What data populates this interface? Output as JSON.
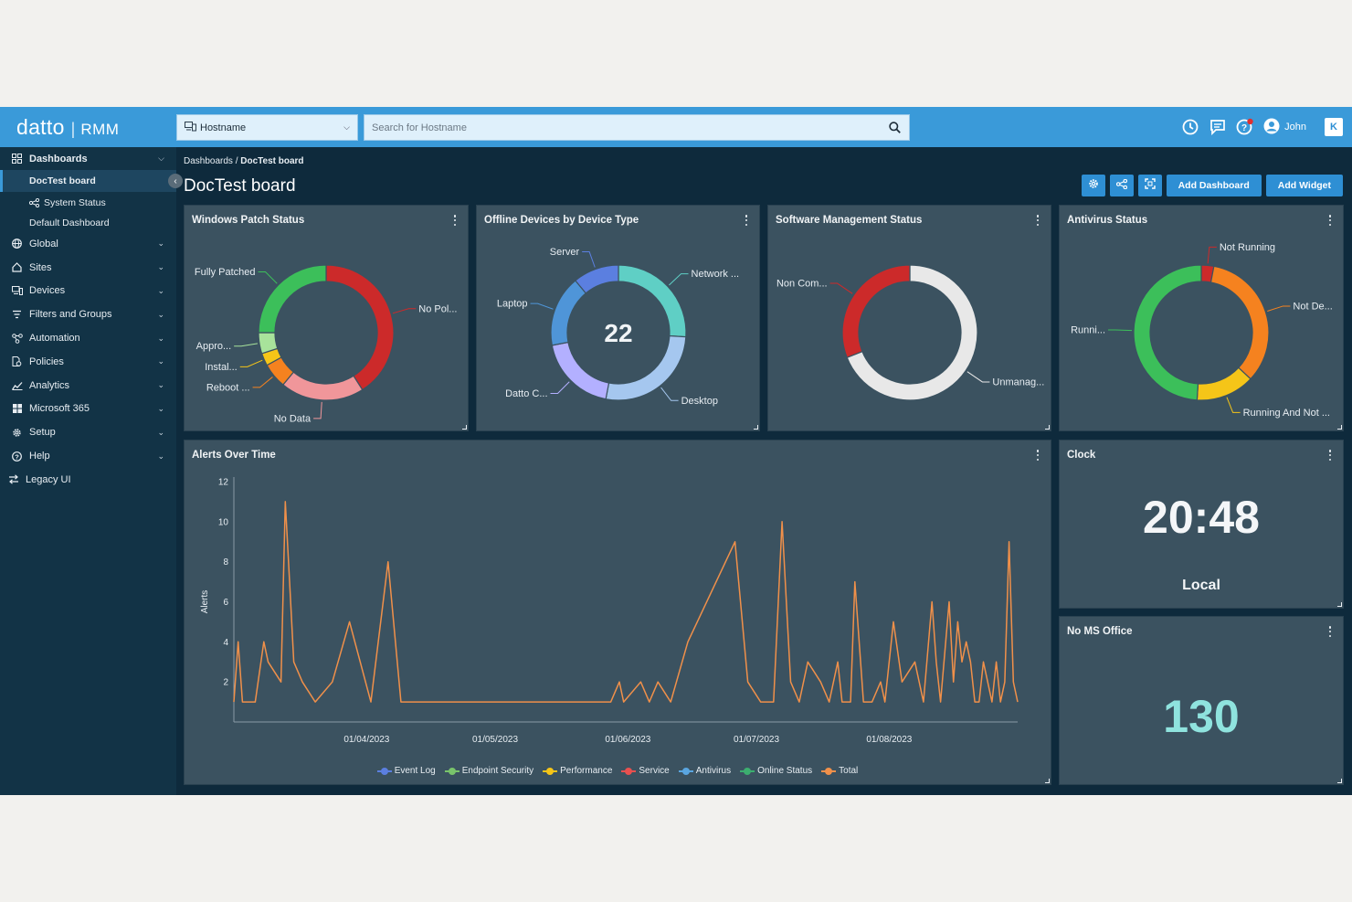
{
  "app": {
    "brand": "datto",
    "separator": "|",
    "product": "RMM"
  },
  "topbar": {
    "host_select": "Hostname",
    "search_placeholder": "Search for Hostname",
    "user_name": "John",
    "kaseya_mark": "K"
  },
  "sidebar": {
    "items": [
      {
        "label": "Dashboards",
        "icon": "grid-icon"
      },
      {
        "label": "Global",
        "icon": "globe-icon"
      },
      {
        "label": "Sites",
        "icon": "home-icon"
      },
      {
        "label": "Devices",
        "icon": "devices-icon"
      },
      {
        "label": "Filters and Groups",
        "icon": "filter-icon"
      },
      {
        "label": "Automation",
        "icon": "automation-icon"
      },
      {
        "label": "Policies",
        "icon": "policies-icon"
      },
      {
        "label": "Analytics",
        "icon": "analytics-icon"
      },
      {
        "label": "Microsoft 365",
        "icon": "windows-icon"
      },
      {
        "label": "Setup",
        "icon": "gear-icon"
      },
      {
        "label": "Help",
        "icon": "help-icon"
      },
      {
        "label": "Legacy UI",
        "icon": "swap-icon"
      }
    ],
    "dashboards": [
      "DocTest board",
      "System Status",
      "Default Dashboard"
    ]
  },
  "main": {
    "breadcrumb_root": "Dashboards",
    "breadcrumb_sep": " / ",
    "breadcrumb_current": "DocTest board",
    "title": "DocTest board",
    "add_dashboard": "Add Dashboard",
    "add_widget": "Add Widget"
  },
  "widgets": {
    "patch": {
      "title": "Windows Patch Status",
      "slices": [
        {
          "label": "No Pol...",
          "value": 41,
          "color": "#cc2a2a"
        },
        {
          "label": "No Data",
          "value": 20,
          "color": "#f0969a"
        },
        {
          "label": "Reboot ...",
          "value": 6,
          "color": "#f5821f"
        },
        {
          "label": "Instal...",
          "value": 3,
          "color": "#f5c518"
        },
        {
          "label": "Appro...",
          "value": 5,
          "color": "#a8e39b"
        },
        {
          "label": "Fully Patched",
          "value": 25,
          "color": "#3cbf5a"
        }
      ]
    },
    "offline": {
      "title": "Offline Devices by Device Type",
      "center": "22",
      "slices": [
        {
          "label": "Network ...",
          "value": 26,
          "color": "#5fcfc5"
        },
        {
          "label": "Desktop",
          "value": 27,
          "color": "#a5c7ef"
        },
        {
          "label": "Datto C...",
          "value": 19,
          "color": "#b3b0ff"
        },
        {
          "label": "Laptop",
          "value": 17,
          "color": "#4f95d8"
        },
        {
          "label": "Server",
          "value": 11,
          "color": "#5b7fe0"
        }
      ]
    },
    "software": {
      "title": "Software Management Status",
      "slices": [
        {
          "label": "Unmanag...",
          "value": 69,
          "color": "#e8e8e8"
        },
        {
          "label": "Non Com...",
          "value": 31,
          "color": "#cc2a2a"
        }
      ]
    },
    "antivirus": {
      "title": "Antivirus Status",
      "slices": [
        {
          "label": "Not Running",
          "value": 3,
          "color": "#cc2a2a"
        },
        {
          "label": "Not De...",
          "value": 34,
          "color": "#f5821f"
        },
        {
          "label": "Running And Not ...",
          "value": 14,
          "color": "#f5c518"
        },
        {
          "label": "Runni...",
          "value": 49,
          "color": "#3cbf5a"
        }
      ]
    },
    "clock": {
      "title": "Clock",
      "time": "20:48",
      "zone": "Local"
    },
    "msoffice": {
      "title": "No MS Office",
      "count": "130"
    }
  },
  "chart_data": {
    "type": "line",
    "title": "Alerts Over Time",
    "ylabel": "Alerts",
    "xlabel": "",
    "ylim": [
      0,
      12
    ],
    "yticks": [
      2,
      4,
      6,
      8,
      10,
      12
    ],
    "x_range": [
      "2023-03-01",
      "2023-08-31"
    ],
    "xticks": [
      "01/04/2023",
      "01/05/2023",
      "01/06/2023",
      "01/07/2023",
      "01/08/2023"
    ],
    "series_names": [
      "Event Log",
      "Endpoint Security",
      "Performance",
      "Service",
      "Antivirus",
      "Online Status",
      "Total"
    ],
    "series_colors": [
      "#5b7fe0",
      "#79c46b",
      "#f5c518",
      "#e8504f",
      "#5aa6e0",
      "#3cae6f",
      "#f0904a"
    ],
    "total": [
      [
        "2023-03-01",
        1
      ],
      [
        "2023-03-02",
        4
      ],
      [
        "2023-03-03",
        1
      ],
      [
        "2023-03-06",
        1
      ],
      [
        "2023-03-08",
        4
      ],
      [
        "2023-03-09",
        3
      ],
      [
        "2023-03-12",
        2
      ],
      [
        "2023-03-13",
        11
      ],
      [
        "2023-03-14",
        7
      ],
      [
        "2023-03-15",
        3
      ],
      [
        "2023-03-17",
        2
      ],
      [
        "2023-03-20",
        1
      ],
      [
        "2023-03-24",
        2
      ],
      [
        "2023-03-28",
        5
      ],
      [
        "2023-04-02",
        1
      ],
      [
        "2023-04-06",
        8
      ],
      [
        "2023-04-09",
        1
      ],
      [
        "2023-04-20",
        1
      ],
      [
        "2023-05-01",
        1
      ],
      [
        "2023-05-15",
        1
      ],
      [
        "2023-05-28",
        1
      ],
      [
        "2023-05-30",
        2
      ],
      [
        "2023-05-31",
        1
      ],
      [
        "2023-06-04",
        2
      ],
      [
        "2023-06-06",
        1
      ],
      [
        "2023-06-08",
        2
      ],
      [
        "2023-06-11",
        1
      ],
      [
        "2023-06-15",
        4
      ],
      [
        "2023-06-26",
        9
      ],
      [
        "2023-06-29",
        2
      ],
      [
        "2023-07-02",
        1
      ],
      [
        "2023-07-05",
        1
      ],
      [
        "2023-07-07",
        10
      ],
      [
        "2023-07-09",
        2
      ],
      [
        "2023-07-11",
        1
      ],
      [
        "2023-07-13",
        3
      ],
      [
        "2023-07-16",
        2
      ],
      [
        "2023-07-18",
        1
      ],
      [
        "2023-07-20",
        3
      ],
      [
        "2023-07-21",
        1
      ],
      [
        "2023-07-23",
        1
      ],
      [
        "2023-07-24",
        7
      ],
      [
        "2023-07-26",
        1
      ],
      [
        "2023-07-28",
        1
      ],
      [
        "2023-07-30",
        2
      ],
      [
        "2023-07-31",
        1
      ],
      [
        "2023-08-02",
        5
      ],
      [
        "2023-08-04",
        2
      ],
      [
        "2023-08-07",
        3
      ],
      [
        "2023-08-09",
        1
      ],
      [
        "2023-08-11",
        6
      ],
      [
        "2023-08-12",
        3
      ],
      [
        "2023-08-13",
        1
      ],
      [
        "2023-08-15",
        6
      ],
      [
        "2023-08-16",
        2
      ],
      [
        "2023-08-17",
        5
      ],
      [
        "2023-08-18",
        3
      ],
      [
        "2023-08-19",
        4
      ],
      [
        "2023-08-20",
        3
      ],
      [
        "2023-08-21",
        1
      ],
      [
        "2023-08-22",
        1
      ],
      [
        "2023-08-23",
        3
      ],
      [
        "2023-08-24",
        2
      ],
      [
        "2023-08-25",
        1
      ],
      [
        "2023-08-26",
        3
      ],
      [
        "2023-08-27",
        1
      ],
      [
        "2023-08-28",
        2
      ],
      [
        "2023-08-29",
        9
      ],
      [
        "2023-08-30",
        2
      ],
      [
        "2023-08-31",
        1
      ]
    ]
  }
}
